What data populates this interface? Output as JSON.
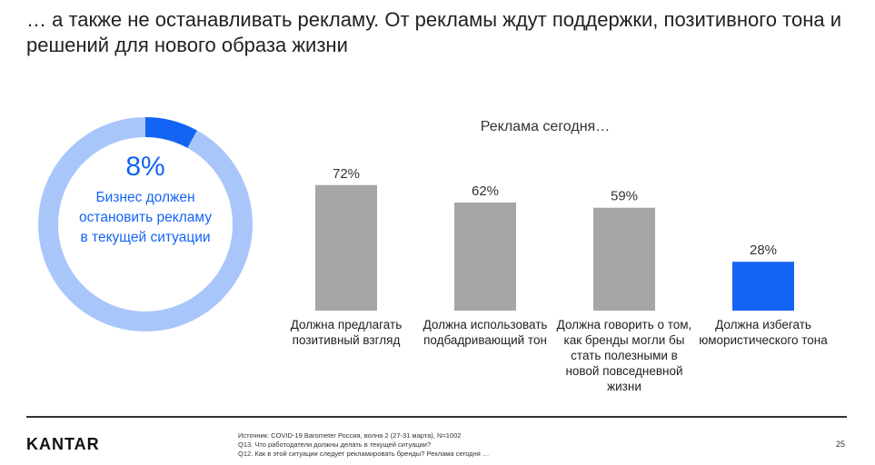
{
  "title": "… а также не останавливать рекламу. От рекламы ждут поддержки, позитивного тона и решений для нового образа жизни",
  "donut": {
    "value": 8,
    "value_label": "8%",
    "caption": "Бизнес должен остановить рекламу в текущей ситуации",
    "accent_color": "#1464f4",
    "rest_color": "#a9c6fb"
  },
  "chart_data": {
    "type": "bar",
    "title": "Реклама сегодня…",
    "categories": [
      "Должна предлагать позитивный взгляд",
      "Должна использовать подбадривающий тон",
      "Должна говорить о том, как бренды могли бы стать полезными в новой повседневной жизни",
      "Должна избегать юмористического тона"
    ],
    "values": [
      72,
      62,
      59,
      28
    ],
    "labels": [
      "72%",
      "62%",
      "59%",
      "28%"
    ],
    "colors": [
      "#a6a6a6",
      "#a6a6a6",
      "#a6a6a6",
      "#1464f4"
    ],
    "ylim": [
      0,
      100
    ]
  },
  "footer": {
    "logo": "KANTAR",
    "source_lines": [
      "Источник: COVID-19 Barometer Россия, волна 2 (27-31 марта), N=1002",
      "Q13. Что работодатели должны делать в текущей ситуации?",
      "Q12. Как в этой ситуации следует рекламировать бренды? Реклама сегодня …"
    ],
    "page_number": "25"
  }
}
